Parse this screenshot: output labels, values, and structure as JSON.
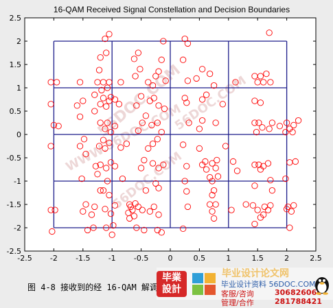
{
  "chart_data": {
    "type": "scatter",
    "title": "16-QAM Received Signal Constellation and Decision Boundaries",
    "xlim": [
      -2.5,
      2.5
    ],
    "ylim": [
      -2.5,
      2.5
    ],
    "xticks": [
      "-2.5",
      "-2",
      "-1.5",
      "-1",
      "-0.5",
      "0",
      "0.5",
      "1",
      "1.5",
      "2",
      "2.5"
    ],
    "yticks": [
      "-2.5",
      "-2",
      "-1.5",
      "-1",
      "-0.5",
      "0",
      "0.5",
      "1",
      "1.5",
      "2",
      "2.5"
    ],
    "marker": "circle",
    "marker_color": "#ff0000",
    "boundary_color": "#1c1c8a",
    "decision_boundaries": {
      "x": [
        -2,
        -1,
        0,
        1,
        2
      ],
      "y": [
        -2,
        -1,
        0,
        1,
        2
      ]
    },
    "points": [
      [
        -2.05,
        1.12
      ],
      [
        -1.95,
        1.12
      ],
      [
        -2.05,
        0.65
      ],
      [
        -2.0,
        0.2
      ],
      [
        -1.92,
        0.18
      ],
      [
        -2.05,
        -0.25
      ],
      [
        -1.98,
        -1.62
      ],
      [
        -2.05,
        -1.62
      ],
      [
        -2.03,
        -2.08
      ],
      [
        -1.55,
        1.12
      ],
      [
        -1.6,
        0.62
      ],
      [
        -1.5,
        0.72
      ],
      [
        -1.55,
        0.38
      ],
      [
        -1.48,
        -0.1
      ],
      [
        -1.55,
        -0.25
      ],
      [
        -1.45,
        -0.42
      ],
      [
        -1.52,
        -0.95
      ],
      [
        -1.45,
        -1.5
      ],
      [
        -1.5,
        -1.65
      ],
      [
        -1.35,
        -1.72
      ],
      [
        -1.42,
        -2.05
      ],
      [
        -1.32,
        -2.0
      ],
      [
        -1.3,
        0.85
      ],
      [
        -1.25,
        1.12
      ],
      [
        -1.3,
        0.5
      ],
      [
        -1.22,
        -0.25
      ],
      [
        -1.28,
        -0.68
      ],
      [
        -1.25,
        -0.85
      ],
      [
        -1.2,
        -1.2
      ],
      [
        -1.3,
        -1.55
      ],
      [
        -1.12,
        2.05
      ],
      [
        -1.05,
        2.15
      ],
      [
        -1.2,
        1.65
      ],
      [
        -1.1,
        1.75
      ],
      [
        -1.22,
        1.38
      ],
      [
        -1.15,
        1.12
      ],
      [
        -1.05,
        1.12
      ],
      [
        -1.18,
        0.95
      ],
      [
        -1.08,
        1.0
      ],
      [
        -1.15,
        0.78
      ],
      [
        -1.05,
        0.72
      ],
      [
        -1.2,
        0.65
      ],
      [
        -1.1,
        0.6
      ],
      [
        -1.02,
        0.8
      ],
      [
        -1.2,
        0.25
      ],
      [
        -1.08,
        0.25
      ],
      [
        -1.12,
        0.12
      ],
      [
        -1.02,
        0.05
      ],
      [
        -1.15,
        -0.12
      ],
      [
        -1.05,
        -0.18
      ],
      [
        -1.12,
        -0.3
      ],
      [
        -1.2,
        -0.65
      ],
      [
        -1.1,
        -0.72
      ],
      [
        -1.02,
        -0.6
      ],
      [
        -1.08,
        -1.0
      ],
      [
        -1.15,
        -1.2
      ],
      [
        -1.05,
        -1.3
      ],
      [
        -1.12,
        -1.6
      ],
      [
        -1.02,
        -1.7
      ],
      [
        -1.1,
        -2.0
      ],
      [
        -1.0,
        -2.15
      ],
      [
        -0.95,
        0.75
      ],
      [
        -0.95,
        0.18
      ],
      [
        -0.95,
        -0.68
      ],
      [
        -0.95,
        -1.52
      ],
      [
        -0.98,
        -1.95
      ],
      [
        -0.85,
        1.12
      ],
      [
        -0.88,
        0.65
      ],
      [
        -0.85,
        -0.28
      ],
      [
        -0.82,
        -0.95
      ],
      [
        -0.75,
        -0.2
      ],
      [
        -0.7,
        -1.5
      ],
      [
        -0.62,
        1.62
      ],
      [
        -0.55,
        1.75
      ],
      [
        -0.52,
        1.4
      ],
      [
        -0.6,
        1.25
      ],
      [
        -0.5,
        0.82
      ],
      [
        -0.58,
        0.62
      ],
      [
        -0.48,
        0.25
      ],
      [
        -0.55,
        0.08
      ],
      [
        -0.42,
        0.4
      ],
      [
        -0.45,
        -0.55
      ],
      [
        -0.5,
        -0.72
      ],
      [
        -0.42,
        -1.2
      ],
      [
        -0.55,
        -1.55
      ],
      [
        -0.48,
        -1.62
      ],
      [
        -0.58,
        -2.0
      ],
      [
        -0.45,
        -2.05
      ],
      [
        -0.38,
        -0.3
      ],
      [
        -0.35,
        -1.65
      ],
      [
        -0.6,
        -1.48
      ],
      [
        -0.65,
        -1.62
      ],
      [
        -0.62,
        -1.75
      ],
      [
        -0.68,
        -1.55
      ],
      [
        -0.72,
        -1.68
      ],
      [
        -0.7,
        -1.8
      ],
      [
        -0.38,
        1.12
      ],
      [
        -0.3,
        1.05
      ],
      [
        -0.25,
        1.25
      ],
      [
        -0.2,
        1.35
      ],
      [
        -0.35,
        0.72
      ],
      [
        -0.28,
        0.78
      ],
      [
        -0.2,
        0.62
      ],
      [
        -0.32,
        0.2
      ],
      [
        -0.22,
        0.25
      ],
      [
        -0.15,
        0.05
      ],
      [
        -0.3,
        -0.2
      ],
      [
        -0.22,
        -0.1
      ],
      [
        -0.3,
        -0.62
      ],
      [
        -0.2,
        -0.72
      ],
      [
        -0.12,
        -0.65
      ],
      [
        -0.25,
        -1.05
      ],
      [
        -0.2,
        -1.15
      ],
      [
        -0.28,
        -1.55
      ],
      [
        -0.2,
        -1.72
      ],
      [
        -0.22,
        -2.05
      ],
      [
        -0.15,
        -2.1
      ],
      [
        -0.15,
        1.6
      ],
      [
        -0.12,
        2.0
      ],
      [
        -0.08,
        1.15
      ],
      [
        -0.1,
        0.55
      ],
      [
        0.25,
        2.05
      ],
      [
        0.3,
        1.95
      ],
      [
        0.22,
        1.6
      ],
      [
        0.3,
        1.15
      ],
      [
        0.25,
        0.78
      ],
      [
        0.28,
        0.68
      ],
      [
        0.32,
        0.25
      ],
      [
        0.22,
        -0.22
      ],
      [
        0.28,
        -0.68
      ],
      [
        0.25,
        -1.0
      ],
      [
        0.28,
        -1.22
      ],
      [
        0.3,
        -1.55
      ],
      [
        0.22,
        -2.02
      ],
      [
        0.45,
        1.2
      ],
      [
        0.5,
        -0.3
      ],
      [
        0.55,
        0.3
      ],
      [
        0.5,
        0.12
      ],
      [
        0.55,
        -0.65
      ],
      [
        0.62,
        -0.75
      ],
      [
        0.6,
        -0.58
      ],
      [
        0.72,
        -0.62
      ],
      [
        0.78,
        -0.72
      ],
      [
        0.68,
        -0.92
      ],
      [
        0.72,
        -1.0
      ],
      [
        0.8,
        -0.55
      ],
      [
        0.82,
        -0.9
      ],
      [
        0.75,
        -1.2
      ],
      [
        0.72,
        -1.3
      ],
      [
        0.68,
        -1.5
      ],
      [
        0.72,
        -1.65
      ],
      [
        0.78,
        -1.5
      ],
      [
        0.75,
        1.05
      ],
      [
        0.78,
        0.25
      ],
      [
        0.75,
        -1.8
      ],
      [
        0.68,
        1.3
      ],
      [
        0.55,
        1.4
      ],
      [
        0.62,
        0.85
      ],
      [
        0.55,
        0.75
      ],
      [
        0.95,
        -0.25
      ],
      [
        0.9,
        0.65
      ],
      [
        1.08,
        -0.58
      ],
      [
        1.15,
        -0.78
      ],
      [
        1.05,
        -1.62
      ],
      [
        1.12,
        1.12
      ],
      [
        1.3,
        -1.5
      ],
      [
        1.42,
        -1.52
      ],
      [
        1.45,
        1.25
      ],
      [
        1.55,
        1.25
      ],
      [
        1.6,
        1.12
      ],
      [
        1.5,
        1.12
      ],
      [
        1.65,
        1.3
      ],
      [
        1.72,
        1.12
      ],
      [
        1.45,
        0.72
      ],
      [
        1.55,
        0.68
      ],
      [
        1.45,
        0.25
      ],
      [
        1.52,
        0.25
      ],
      [
        1.58,
        0.15
      ],
      [
        1.48,
        0.05
      ],
      [
        1.45,
        -0.65
      ],
      [
        1.52,
        -0.65
      ],
      [
        1.6,
        -0.68
      ],
      [
        1.68,
        -0.62
      ],
      [
        1.55,
        -0.75
      ],
      [
        1.45,
        -1.1
      ],
      [
        1.5,
        -1.62
      ],
      [
        1.62,
        -1.55
      ],
      [
        1.68,
        -1.62
      ],
      [
        1.72,
        -1.52
      ],
      [
        1.6,
        -1.72
      ],
      [
        1.7,
        2.18
      ],
      [
        1.75,
        0.25
      ],
      [
        1.7,
        0.12
      ],
      [
        1.75,
        -1.2
      ],
      [
        1.72,
        -0.98
      ],
      [
        1.45,
        -1.92
      ],
      [
        1.88,
        0.18
      ],
      [
        1.98,
        0.05
      ],
      [
        2.0,
        0.25
      ],
      [
        2.05,
        0.12
      ],
      [
        2.12,
        0.2
      ],
      [
        2.1,
        0.05
      ],
      [
        2.15,
        -0.58
      ],
      [
        2.05,
        -0.6
      ],
      [
        2.02,
        -1.55
      ],
      [
        2.12,
        -1.52
      ],
      [
        2.08,
        -1.65
      ],
      [
        2.0,
        -1.6
      ],
      [
        2.05,
        -2.0
      ],
      [
        1.98,
        -0.95
      ],
      [
        2.2,
        0.3
      ],
      [
        1.55,
        -1.78
      ]
    ]
  },
  "watermark": {
    "text_1": "56DOC.COM",
    "text_2": "WWW.56DOC.COM"
  },
  "caption": "图 4-8 接收到的经 16-QAM 解调",
  "badge": {
    "logo_line1": "毕業",
    "logo_line2": "設計",
    "site_name": "毕业设计论文网",
    "site_url": "毕业设计资料 56DOC.COM",
    "service_label": "客服/咨询",
    "service_number": "306826066",
    "manage_label": "管理/合作",
    "manage_number": "281788421"
  }
}
